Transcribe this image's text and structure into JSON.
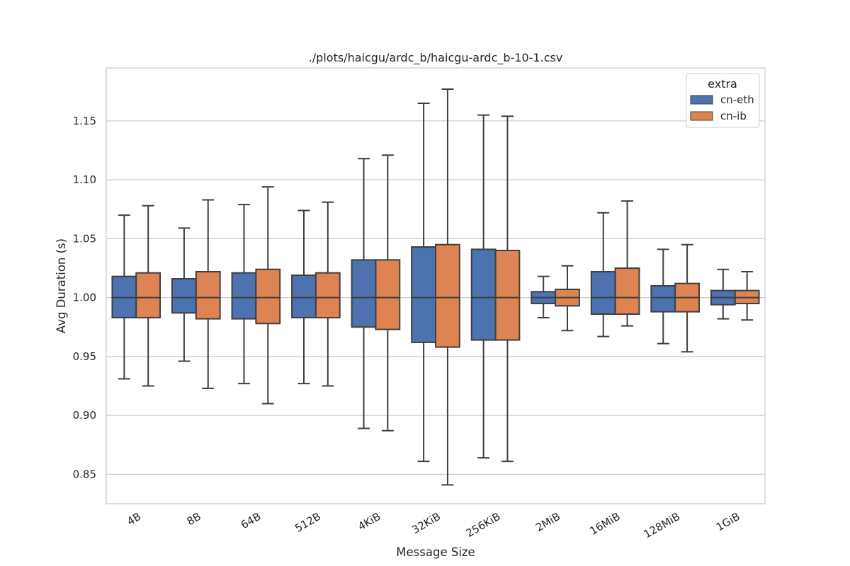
{
  "chart_data": {
    "type": "box",
    "title": "./plots/haicgu/ardc_b/haicgu-ardc_b-10-1.csv",
    "xlabel": "Message Size",
    "ylabel": "Avg Duration (s)",
    "ylim": [
      0.825,
      1.195
    ],
    "yticks": [
      "0.85",
      "0.90",
      "0.95",
      "1.00",
      "1.05",
      "1.10",
      "1.15"
    ],
    "grid": true,
    "legend": {
      "title": "extra",
      "placement": "top-right"
    },
    "categories": [
      "4B",
      "8B",
      "64B",
      "512B",
      "4KiB",
      "32KiB",
      "256KiB",
      "2MiB",
      "16MiB",
      "128MiB",
      "1GiB"
    ],
    "series": [
      {
        "name": "cn-eth",
        "color": "#4c72b0",
        "boxes": [
          {
            "whislo": 0.931,
            "q1": 0.983,
            "med": 1.0,
            "q3": 1.018,
            "whishi": 1.07
          },
          {
            "whislo": 0.946,
            "q1": 0.987,
            "med": 1.0,
            "q3": 1.016,
            "whishi": 1.059
          },
          {
            "whislo": 0.927,
            "q1": 0.982,
            "med": 1.0,
            "q3": 1.021,
            "whishi": 1.079
          },
          {
            "whislo": 0.927,
            "q1": 0.983,
            "med": 1.0,
            "q3": 1.019,
            "whishi": 1.074
          },
          {
            "whislo": 0.889,
            "q1": 0.975,
            "med": 1.0,
            "q3": 1.032,
            "whishi": 1.118
          },
          {
            "whislo": 0.861,
            "q1": 0.962,
            "med": 1.0,
            "q3": 1.043,
            "whishi": 1.165
          },
          {
            "whislo": 0.864,
            "q1": 0.964,
            "med": 1.0,
            "q3": 1.041,
            "whishi": 1.155
          },
          {
            "whislo": 0.983,
            "q1": 0.995,
            "med": 1.0,
            "q3": 1.005,
            "whishi": 1.018
          },
          {
            "whislo": 0.967,
            "q1": 0.986,
            "med": 1.0,
            "q3": 1.022,
            "whishi": 1.072
          },
          {
            "whislo": 0.961,
            "q1": 0.988,
            "med": 1.0,
            "q3": 1.01,
            "whishi": 1.041
          },
          {
            "whislo": 0.982,
            "q1": 0.994,
            "med": 1.0,
            "q3": 1.006,
            "whishi": 1.024
          }
        ]
      },
      {
        "name": "cn-ib",
        "color": "#dd8452",
        "boxes": [
          {
            "whislo": 0.925,
            "q1": 0.983,
            "med": 1.0,
            "q3": 1.021,
            "whishi": 1.078
          },
          {
            "whislo": 0.923,
            "q1": 0.982,
            "med": 1.0,
            "q3": 1.022,
            "whishi": 1.083
          },
          {
            "whislo": 0.91,
            "q1": 0.978,
            "med": 1.0,
            "q3": 1.024,
            "whishi": 1.094
          },
          {
            "whislo": 0.925,
            "q1": 0.983,
            "med": 1.0,
            "q3": 1.021,
            "whishi": 1.081
          },
          {
            "whislo": 0.887,
            "q1": 0.973,
            "med": 1.0,
            "q3": 1.032,
            "whishi": 1.121
          },
          {
            "whislo": 0.841,
            "q1": 0.958,
            "med": 1.0,
            "q3": 1.045,
            "whishi": 1.177
          },
          {
            "whislo": 0.861,
            "q1": 0.964,
            "med": 1.0,
            "q3": 1.04,
            "whishi": 1.154
          },
          {
            "whislo": 0.972,
            "q1": 0.993,
            "med": 1.0,
            "q3": 1.007,
            "whishi": 1.027
          },
          {
            "whislo": 0.976,
            "q1": 0.986,
            "med": 1.0,
            "q3": 1.025,
            "whishi": 1.082
          },
          {
            "whislo": 0.954,
            "q1": 0.988,
            "med": 1.0,
            "q3": 1.012,
            "whishi": 1.045
          },
          {
            "whislo": 0.981,
            "q1": 0.995,
            "med": 1.0,
            "q3": 1.006,
            "whishi": 1.022
          }
        ]
      }
    ]
  }
}
